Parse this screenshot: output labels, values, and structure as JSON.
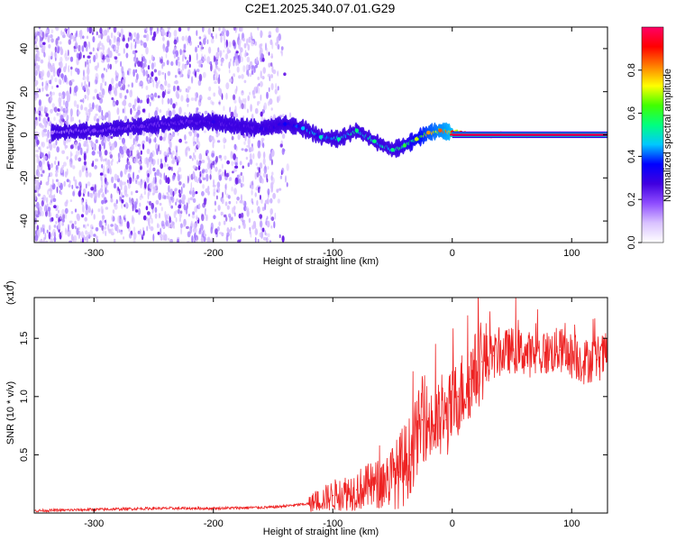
{
  "figure_title": "C2E1.2025.340.07.01.G29",
  "chart_data": [
    {
      "type": "heatmap",
      "panel": "spectrogram",
      "xlabel": "Height of straight line (km)",
      "ylabel": "Frequency (Hz)",
      "xlim": [
        -350,
        130
      ],
      "ylim": [
        -50,
        50
      ],
      "xticks": [
        -300,
        -200,
        -100,
        0,
        100
      ],
      "yticks": [
        -40,
        -20,
        0,
        20,
        40
      ],
      "colorbar": {
        "label": "Normalized spectral amplitude",
        "range": [
          0.0,
          1.0
        ],
        "ticks": [
          0.0,
          0.2,
          0.4,
          0.6,
          0.8
        ],
        "colormap": [
          "#ffffff",
          "#d9c2ff",
          "#8f4dff",
          "#4000e0",
          "#0000ff",
          "#00c8ff",
          "#00ff80",
          "#40ff00",
          "#ffff00",
          "#ff8000",
          "#ff0000",
          "#ff0066"
        ]
      },
      "ridge": {
        "description": "frequency of peak amplitude vs height",
        "x": [
          -335,
          -300,
          -260,
          -220,
          -200,
          -180,
          -160,
          -140,
          -125,
          -110,
          -95,
          -80,
          -65,
          -50,
          -40,
          -30,
          -20,
          -10,
          0,
          20,
          60,
          100,
          130
        ],
        "y": [
          1,
          2,
          4,
          6,
          6,
          4,
          3,
          5,
          3,
          -1,
          -2,
          2,
          -3,
          -7,
          -5,
          -2,
          1,
          2,
          1,
          0,
          0,
          0,
          0
        ],
        "amplitude": [
          0.15,
          0.2,
          0.22,
          0.25,
          0.3,
          0.28,
          0.3,
          0.35,
          0.45,
          0.5,
          0.52,
          0.55,
          0.55,
          0.55,
          0.6,
          0.7,
          0.8,
          0.85,
          0.9,
          0.95,
          0.95,
          0.95,
          0.95
        ]
      }
    },
    {
      "type": "line",
      "panel": "snr",
      "xlabel": "Height of straight line (km)",
      "ylabel": "SNR (10 * v/v)",
      "y_scale_label": "(x10",
      "y_scale_exponent": "4",
      "xlim": [
        -350,
        130
      ],
      "ylim": [
        0,
        1.85
      ],
      "xticks": [
        -300,
        -200,
        -100,
        0,
        100
      ],
      "yticks": [
        0.5,
        1.0,
        1.5
      ],
      "ytick_labels": [
        "0.5",
        "1.0",
        "1.5"
      ],
      "series": [
        {
          "name": "SNR",
          "color": "#ee2222",
          "x": [
            -350,
            -300,
            -250,
            -200,
            -150,
            -120,
            -100,
            -80,
            -60,
            -45,
            -35,
            -25,
            -15,
            -5,
            5,
            15,
            25,
            35,
            50,
            70,
            90,
            110,
            130
          ],
          "y": [
            0.02,
            0.03,
            0.04,
            0.04,
            0.05,
            0.08,
            0.15,
            0.2,
            0.25,
            0.35,
            0.5,
            0.8,
            0.75,
            0.8,
            1.0,
            1.15,
            1.3,
            1.35,
            1.4,
            1.35,
            1.4,
            1.3,
            1.35
          ]
        }
      ]
    }
  ]
}
